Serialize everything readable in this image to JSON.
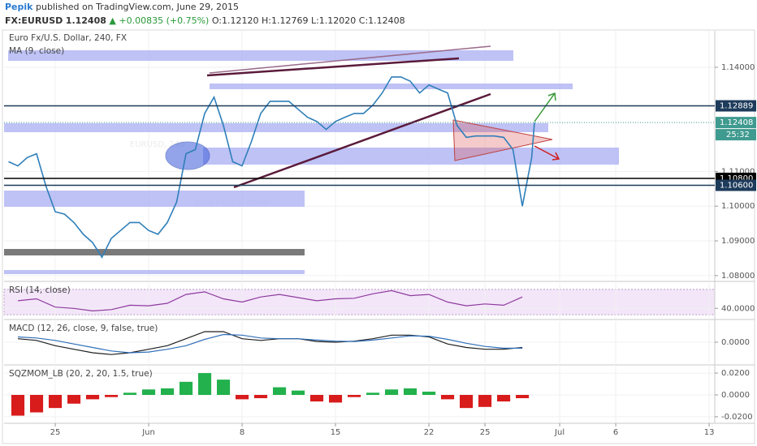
{
  "header": {
    "author": "Pepik",
    "published": "published on TradingView.com, June 29, 2015",
    "symbol": "FX:EURUSD",
    "last": "1.12408",
    "change": "▲ +0.00835 (+0.75%)",
    "open": "O:1.12120",
    "high": "H:1.12769",
    "low": "L:1.12020",
    "close": "C:1.12408"
  },
  "chart_data": [
    {
      "type": "line",
      "title": "Euro Fx/U.S. Dollar, 240, FX",
      "subtitle": "MA (9, close)",
      "watermark": [
        "EURUSD, 240",
        "Euro Fx/U.S. Dollar"
      ],
      "x": [
        -2.5,
        -2,
        -1.5,
        -1,
        -0.5,
        0,
        0.5,
        1,
        1.5,
        2,
        2.5,
        3,
        3.5,
        4,
        4.5,
        5,
        5.5,
        6,
        6.5,
        7,
        7.5,
        8,
        8.5,
        9,
        9.5,
        10,
        10.5,
        11,
        11.5,
        12,
        12.5,
        13,
        13.5,
        14,
        14.5,
        15,
        15.5,
        16,
        16.5,
        17,
        17.5,
        18,
        18.5,
        19,
        19.5,
        20,
        20.5,
        21,
        21.5,
        22,
        22.5,
        23,
        23.5,
        24,
        24.5,
        25,
        25.5,
        25.65
      ],
      "series": [
        {
          "color": "#2f7fb9",
          "values": [
            1.1128,
            1.1116,
            1.114,
            1.1151,
            1.1058,
            1.0984,
            1.0977,
            1.0953,
            1.0919,
            1.0895,
            1.0853,
            1.0907,
            1.093,
            1.0953,
            1.0953,
            1.093,
            1.0919,
            1.0953,
            1.1012,
            1.1151,
            1.1163,
            1.1267,
            1.1314,
            1.1233,
            1.1128,
            1.1116,
            1.1186,
            1.1267,
            1.1302,
            1.1302,
            1.1302,
            1.1279,
            1.1256,
            1.1244,
            1.1221,
            1.1244,
            1.1256,
            1.1267,
            1.1267,
            1.1291,
            1.1326,
            1.1372,
            1.1372,
            1.136,
            1.1326,
            1.1349,
            1.1337,
            1.1326,
            1.1233,
            1.1198,
            1.1202,
            1.1202,
            1.1202,
            1.1198,
            1.1163,
            1.1,
            1.114,
            1.12408
          ]
        }
      ],
      "xlim": [
        -2.74,
        35.3
      ],
      "ylim": [
        1.0788,
        1.1505
      ],
      "yticks": [
        {
          "value": 1.14,
          "label": "1.14000"
        },
        {
          "value": 1.11,
          "label": "1.11000"
        },
        {
          "value": 1.1,
          "label": "1.10000"
        },
        {
          "value": 1.09,
          "label": "1.09000"
        },
        {
          "value": 1.08,
          "label": "1.08000"
        }
      ],
      "levels": [
        {
          "value": 1.12889,
          "label": "1.12889",
          "color": "#1d3b5b"
        },
        {
          "value": 1.12408,
          "label": "1.12408",
          "color": "#3f9a8f"
        },
        {
          "value": 1.108,
          "label": "1.10800",
          "color": "#000000"
        },
        {
          "value": 1.106,
          "label": "1.10600",
          "color": "#1d3b5b"
        }
      ],
      "countdown": "25:32",
      "grid": true
    },
    {
      "type": "line",
      "title": "RSI (14, close)",
      "x": [
        -2,
        -1,
        0,
        1,
        2,
        3,
        4,
        5,
        6,
        7,
        8,
        9,
        10,
        11,
        12,
        13,
        14,
        15,
        16,
        17,
        18,
        19,
        20,
        21,
        22,
        23,
        24,
        25
      ],
      "series": [
        {
          "color": "#8e3b9e",
          "values": [
            52,
            55,
            42,
            40,
            36,
            38,
            45,
            44,
            48,
            62,
            66,
            55,
            50,
            58,
            62,
            57,
            52,
            55,
            56,
            63,
            68,
            60,
            62,
            50,
            44,
            47,
            45,
            58
          ]
        }
      ],
      "band": [
        30,
        70
      ],
      "xlim": [
        -2.74,
        35.3
      ],
      "ylim": [
        25,
        80
      ],
      "yticks": [
        {
          "value": 40,
          "label": "40.0000"
        }
      ],
      "grid": true
    },
    {
      "type": "line",
      "title": "MACD (12, 26, close, 9, false, true)",
      "x": [
        -2,
        -1,
        0,
        1,
        2,
        3,
        4,
        5,
        6,
        7,
        8,
        9,
        10,
        11,
        12,
        13,
        14,
        15,
        16,
        17,
        18,
        19,
        20,
        21,
        22,
        23,
        24,
        25
      ],
      "series": [
        {
          "color": "#1f1f1f",
          "values": [
            0.001,
            0.0005,
            -0.001,
            -0.002,
            -0.003,
            -0.0035,
            -0.003,
            -0.002,
            -0.001,
            0.001,
            0.003,
            0.003,
            0.001,
            0.0005,
            0.001,
            0.001,
            0.0002,
            0,
            0.0003,
            0.001,
            0.002,
            0.002,
            0.0015,
            -0.0005,
            -0.0015,
            -0.002,
            -0.002,
            -0.0015
          ]
        },
        {
          "color": "#2f6fb9",
          "values": [
            0.0015,
            0.0012,
            0.0005,
            -0.0005,
            -0.0015,
            -0.0025,
            -0.003,
            -0.0028,
            -0.002,
            -0.001,
            0.0008,
            0.0022,
            0.002,
            0.0012,
            0.001,
            0.001,
            0.0006,
            0.0003,
            0.0002,
            0.0006,
            0.0012,
            0.0018,
            0.0017,
            0.0008,
            -0.0003,
            -0.0012,
            -0.0017,
            -0.0017
          ]
        }
      ],
      "xlim": [
        -2.74,
        35.3
      ],
      "ylim": [
        -0.006,
        0.006
      ],
      "yticks": [
        {
          "value": 0,
          "label": "0.0000"
        }
      ],
      "grid": true
    },
    {
      "type": "bar",
      "title": "SQZMOM_LB (20, 2, 20, 1.5, true)",
      "x": [
        -2,
        -1,
        0,
        1,
        2,
        3,
        4,
        5,
        6,
        7,
        8,
        9,
        10,
        11,
        12,
        13,
        14,
        15,
        16,
        17,
        18,
        19,
        20,
        21,
        22,
        23,
        24,
        25
      ],
      "values": [
        -0.019,
        -0.016,
        -0.012,
        -0.008,
        -0.004,
        -0.002,
        0.002,
        0.005,
        0.006,
        0.012,
        0.02,
        0.014,
        -0.004,
        -0.003,
        0.007,
        0.004,
        -0.006,
        -0.007,
        -0.002,
        0.002,
        0.005,
        0.006,
        0.003,
        -0.004,
        -0.012,
        -0.011,
        -0.006,
        -0.003
      ],
      "positive_color": "#22b14c",
      "negative_color": "#d81b1b",
      "xlim": [
        -2.74,
        35.3
      ],
      "ylim": [
        -0.026,
        0.026
      ],
      "yticks": [
        {
          "value": 0.02,
          "label": "0.0200"
        },
        {
          "value": 0,
          "label": "0.0000"
        },
        {
          "value": -0.02,
          "label": "-0.0200"
        }
      ],
      "xticks": [
        {
          "value": 0,
          "label": "25"
        },
        {
          "value": 5,
          "label": "Jun"
        },
        {
          "value": 10,
          "label": "8"
        },
        {
          "value": 15,
          "label": "15"
        },
        {
          "value": 20,
          "label": "22"
        },
        {
          "value": 23,
          "label": "25"
        },
        {
          "value": 27,
          "label": "Jul"
        },
        {
          "value": 30,
          "label": "6"
        },
        {
          "value": 35,
          "label": "13"
        }
      ],
      "grid": true
    }
  ]
}
